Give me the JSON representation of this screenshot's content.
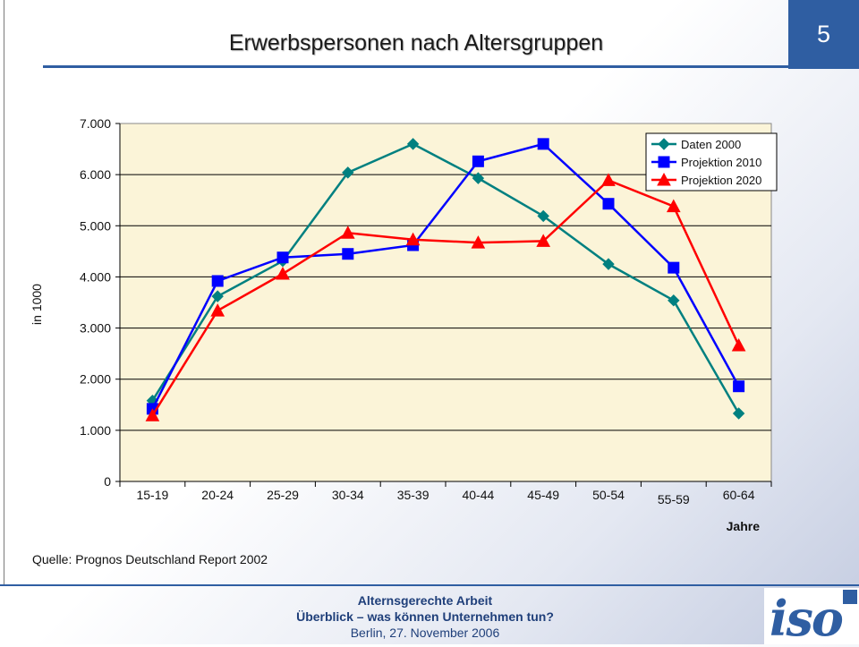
{
  "slide": {
    "number": "5",
    "title": "Erwerbspersonen nach Altersgruppen",
    "source": "Quelle: Prognos Deutschland Report 2002"
  },
  "footer": {
    "line1": "Alternsgerechte Arbeit",
    "line2": "Überblick – was können Unternehmen tun?",
    "line3": "Berlin, 27. November 2006"
  },
  "logo": {
    "text": "iso"
  },
  "colors": {
    "plot_bg": "#fbf4d8",
    "series_teal": "#008080",
    "series_blue": "#0000ff",
    "series_red": "#ff0000",
    "accent": "#2f5ea2"
  },
  "chart_data": {
    "type": "line",
    "title": "",
    "xlabel": "Jahre",
    "ylabel": "in 1000",
    "categories": [
      "15-19",
      "20-24",
      "25-29",
      "30-34",
      "35-39",
      "40-44",
      "45-49",
      "50-54",
      "55-59",
      "60-64"
    ],
    "yticks": [
      "0",
      "1.000",
      "2.000",
      "3.000",
      "4.000",
      "5.000",
      "6.000",
      "7.000"
    ],
    "ylim": [
      0,
      7000
    ],
    "grid": true,
    "legend_position": "top-right",
    "series": [
      {
        "name": "Daten 2000",
        "marker": "diamond",
        "color": "#008080",
        "values": [
          1580,
          3620,
          4310,
          6040,
          6600,
          5930,
          5190,
          4250,
          3540,
          1330
        ]
      },
      {
        "name": "Projektion 2010",
        "marker": "square",
        "color": "#0000ff",
        "values": [
          1420,
          3920,
          4380,
          4450,
          4620,
          6260,
          6600,
          5430,
          4180,
          1860
        ]
      },
      {
        "name": "Projektion 2020",
        "marker": "triangle",
        "color": "#ff0000",
        "values": [
          1290,
          3340,
          4060,
          4860,
          4730,
          4670,
          4700,
          5890,
          5380,
          2660
        ]
      }
    ]
  }
}
